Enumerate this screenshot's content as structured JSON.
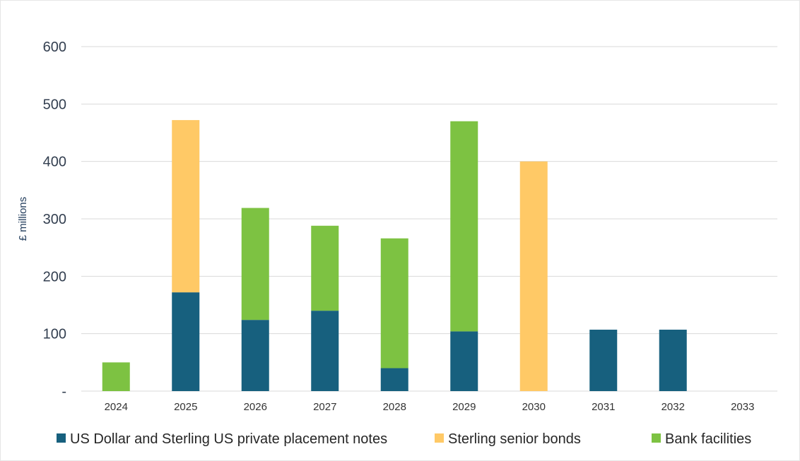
{
  "chart_data": {
    "type": "bar",
    "stacked": true,
    "ylabel": "£ millions",
    "xlabel": "",
    "ylim": [
      0,
      600
    ],
    "yticks": [
      {
        "value": 0,
        "label": "-"
      },
      {
        "value": 100,
        "label": "100"
      },
      {
        "value": 200,
        "label": "200"
      },
      {
        "value": 300,
        "label": "300"
      },
      {
        "value": 400,
        "label": "400"
      },
      {
        "value": 500,
        "label": "500"
      },
      {
        "value": 600,
        "label": "600"
      }
    ],
    "grid": true,
    "legend_position": "bottom",
    "categories": [
      "2024",
      "2025",
      "2026",
      "2027",
      "2028",
      "2029",
      "2030",
      "2031",
      "2032",
      "2033"
    ],
    "series": [
      {
        "name": "US Dollar and Sterling US private placement notes",
        "color": "#17607e",
        "values": [
          0,
          172,
          124,
          140,
          40,
          104,
          0,
          107,
          107,
          0
        ]
      },
      {
        "name": "Sterling senior bonds",
        "color": "#ffc966",
        "values": [
          0,
          300,
          0,
          0,
          0,
          0,
          400,
          0,
          0,
          0
        ]
      },
      {
        "name": "Bank facilities",
        "color": "#7dc242",
        "values": [
          50,
          0,
          195,
          148,
          226,
          366,
          0,
          0,
          0,
          0
        ]
      }
    ]
  }
}
